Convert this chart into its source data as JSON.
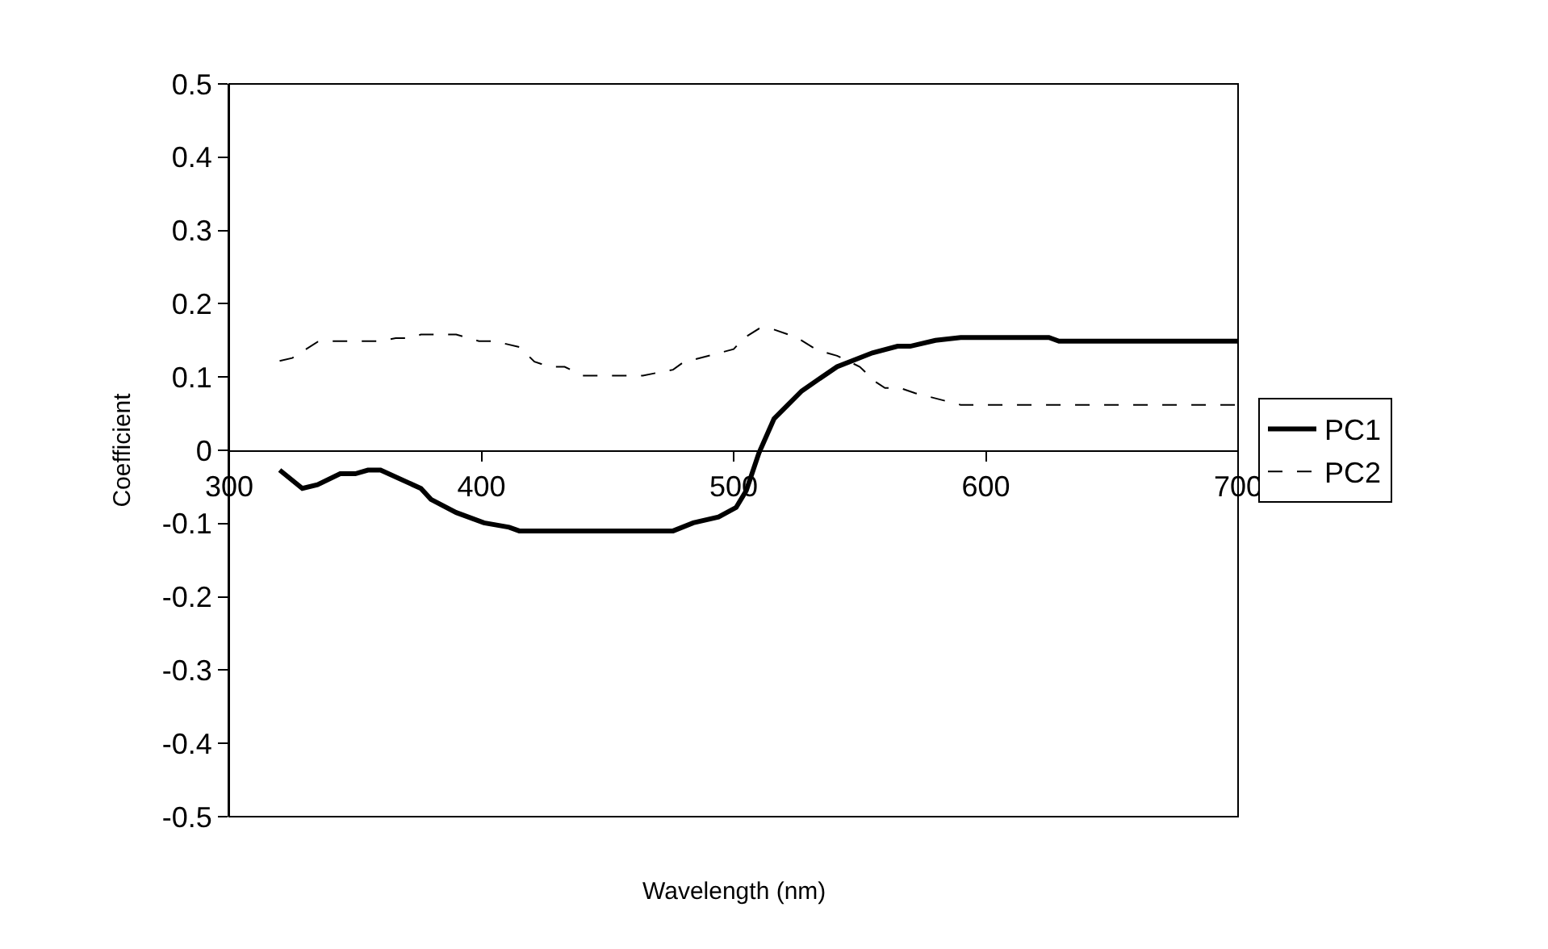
{
  "chart_data": {
    "type": "line",
    "xlabel": "Wavelength (nm)",
    "ylabel": "Coefficient",
    "xlim": [
      300,
      700
    ],
    "xticks": [
      300,
      400,
      500,
      600,
      700
    ],
    "ylim": [
      -0.5,
      0.5
    ],
    "yticks": [
      -0.5,
      -0.4,
      -0.3,
      -0.2,
      -0.1,
      0,
      0.1,
      0.2,
      0.3,
      0.4,
      0.5
    ],
    "grid": false,
    "legend": "right",
    "marker": "none",
    "series": [
      {
        "name": "PC1",
        "color": "#000000",
        "line_style": "solid",
        "x": [
          320,
          329,
          335,
          344,
          350,
          355,
          360,
          376,
          380,
          390,
          401,
          411,
          415,
          476,
          484,
          494,
          501,
          505,
          510,
          516,
          527,
          535,
          541,
          555,
          565,
          570,
          580,
          590,
          625,
          629,
          700
        ],
        "values": [
          -0.027,
          -0.052,
          -0.047,
          -0.032,
          -0.032,
          -0.027,
          -0.027,
          -0.052,
          -0.067,
          -0.085,
          -0.099,
          -0.105,
          -0.11,
          -0.11,
          -0.099,
          -0.091,
          -0.078,
          -0.055,
          -0.004,
          0.043,
          0.081,
          0.1,
          0.114,
          0.133,
          0.142,
          0.142,
          0.15,
          0.154,
          0.154,
          0.149,
          0.149
        ]
      },
      {
        "name": "PC2",
        "color": "#000000",
        "line_style": "dashed",
        "x": [
          320,
          325,
          335,
          340,
          360,
          366,
          371,
          376,
          390,
          399,
          405,
          415,
          421,
          427,
          433,
          440,
          464,
          476,
          480,
          500,
          504,
          510,
          515,
          525,
          533,
          541,
          550,
          556,
          560,
          566,
          572,
          590,
          700
        ],
        "values": [
          0.122,
          0.126,
          0.148,
          0.149,
          0.149,
          0.153,
          0.153,
          0.158,
          0.158,
          0.149,
          0.149,
          0.141,
          0.121,
          0.114,
          0.114,
          0.102,
          0.102,
          0.11,
          0.12,
          0.138,
          0.153,
          0.166,
          0.166,
          0.154,
          0.137,
          0.129,
          0.114,
          0.094,
          0.085,
          0.085,
          0.078,
          0.062,
          0.062
        ]
      }
    ]
  }
}
